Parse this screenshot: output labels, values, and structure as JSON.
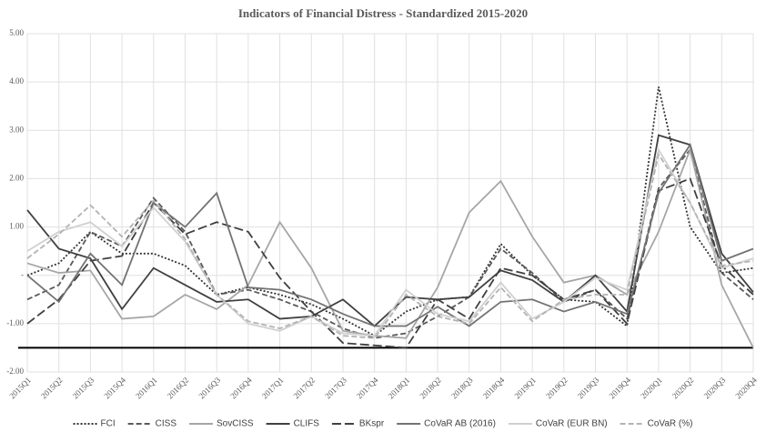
{
  "chart_data": {
    "type": "line",
    "title": "Indicators of Financial Distress - Standardized 2015-2020",
    "categories": [
      "2015Q1",
      "2015Q2",
      "2015Q3",
      "2015Q4",
      "2016Q1",
      "2016Q2",
      "2016Q3",
      "2016Q4",
      "2017Q1",
      "2017Q2",
      "2017Q3",
      "2017Q4",
      "2018Q1",
      "2018Q2",
      "2018Q3",
      "2018Q4",
      "2019Q1",
      "2019Q2",
      "2019Q3",
      "2019Q4",
      "2020Q1",
      "2020Q2",
      "2020Q3",
      "2020Q4"
    ],
    "series": [
      {
        "name": "FCI",
        "color": "#333333",
        "dash": "dotted",
        "values": [
          0,
          0.25,
          0.9,
          0.45,
          0.45,
          0.2,
          -0.4,
          -0.25,
          -0.4,
          -0.6,
          -0.9,
          -1.25,
          -0.75,
          -0.5,
          -0.45,
          0.65,
          0,
          -0.5,
          -0.55,
          -1.05,
          3.9,
          1.0,
          0.05,
          0.15
        ]
      },
      {
        "name": "CISS",
        "color": "#5a5a5a",
        "dash": "dashed",
        "values": [
          -0.5,
          -0.2,
          0.9,
          0.6,
          1.6,
          0.9,
          -0.4,
          -0.3,
          -0.5,
          -0.75,
          -1.1,
          -1.3,
          -1.2,
          -0.85,
          -0.45,
          0.55,
          0.05,
          -0.55,
          -0.3,
          -0.9,
          1.8,
          2.6,
          0.05,
          -0.5
        ]
      },
      {
        "name": "SovCISS",
        "color": "#a6a6a6",
        "dash": "solid",
        "values": [
          0.25,
          0.05,
          0.1,
          -0.9,
          -0.85,
          -0.4,
          -0.7,
          -0.2,
          1.1,
          0.15,
          -1.15,
          -1.25,
          -1.3,
          -0.25,
          1.3,
          1.95,
          0.8,
          -0.15,
          0,
          -0.4,
          0.9,
          2.6,
          -0.2,
          -1.5
        ]
      },
      {
        "name": "CLIFS",
        "color": "#404040",
        "dash": "solid",
        "values": [
          1.35,
          0.55,
          0.35,
          -0.7,
          0.15,
          -0.2,
          -0.55,
          -0.5,
          -0.9,
          -0.85,
          -0.5,
          -1.05,
          -0.45,
          -0.5,
          -0.45,
          0.1,
          -0.1,
          -0.55,
          0,
          -0.75,
          2.9,
          2.7,
          0.45,
          -0.35
        ]
      },
      {
        "name": "BKspr",
        "color": "#404040",
        "dash": "longdash",
        "values": [
          -1.0,
          -0.5,
          0.3,
          0.4,
          1.5,
          0.85,
          1.1,
          0.9,
          -0.05,
          -0.75,
          -1.4,
          -1.45,
          -1.5,
          -0.5,
          -0.9,
          0.15,
          0,
          -0.5,
          -0.3,
          -1.0,
          1.75,
          2.0,
          0.2,
          -0.4
        ]
      },
      {
        "name": "CoVaR AB (2016)",
        "color": "#737373",
        "dash": "solid",
        "values": [
          0,
          -0.55,
          0.45,
          -0.2,
          1.5,
          1.0,
          1.7,
          -0.25,
          -0.3,
          -0.5,
          -0.8,
          -1.05,
          -1.05,
          -0.65,
          -1.05,
          -0.55,
          -0.5,
          -0.75,
          -0.55,
          -0.8,
          1.7,
          2.7,
          0.3,
          0.55
        ]
      },
      {
        "name": "CoVaR (EUR BN)",
        "color": "#d0d0d0",
        "dash": "solid",
        "values": [
          0.5,
          0.9,
          1.1,
          0.6,
          1.4,
          0.7,
          -0.4,
          -1.0,
          -1.15,
          -0.85,
          -1.2,
          -1.25,
          -0.3,
          -0.8,
          -0.95,
          -0.15,
          -0.9,
          -0.55,
          -0.05,
          -0.3,
          2.6,
          1.5,
          0.15,
          0.35
        ]
      },
      {
        "name": "CoVaR (%)",
        "color": "#b3b3b3",
        "dash": "dashed",
        "values": [
          0.35,
          0.85,
          1.45,
          0.8,
          1.55,
          0.75,
          -0.4,
          -0.95,
          -1.1,
          -0.85,
          -1.25,
          -1.3,
          -0.4,
          -0.85,
          -1.0,
          -0.25,
          -0.95,
          -0.5,
          -0.4,
          -0.4,
          2.5,
          1.5,
          0.2,
          0.3
        ]
      }
    ],
    "ylim": [
      -2,
      5
    ],
    "yticks": [
      {
        "value": 5,
        "label": "5.00"
      },
      {
        "value": 4,
        "label": "4.00"
      },
      {
        "value": 3,
        "label": "3.00"
      },
      {
        "value": 2,
        "label": "2.00"
      },
      {
        "value": 1,
        "label": "1.00"
      },
      {
        "value": 0,
        "label": "-"
      },
      {
        "value": -1,
        "label": "-1.00"
      },
      {
        "value": -2,
        "label": "-2.00"
      }
    ],
    "reference_line": -1.5,
    "grid": true,
    "legend": "bottom"
  }
}
